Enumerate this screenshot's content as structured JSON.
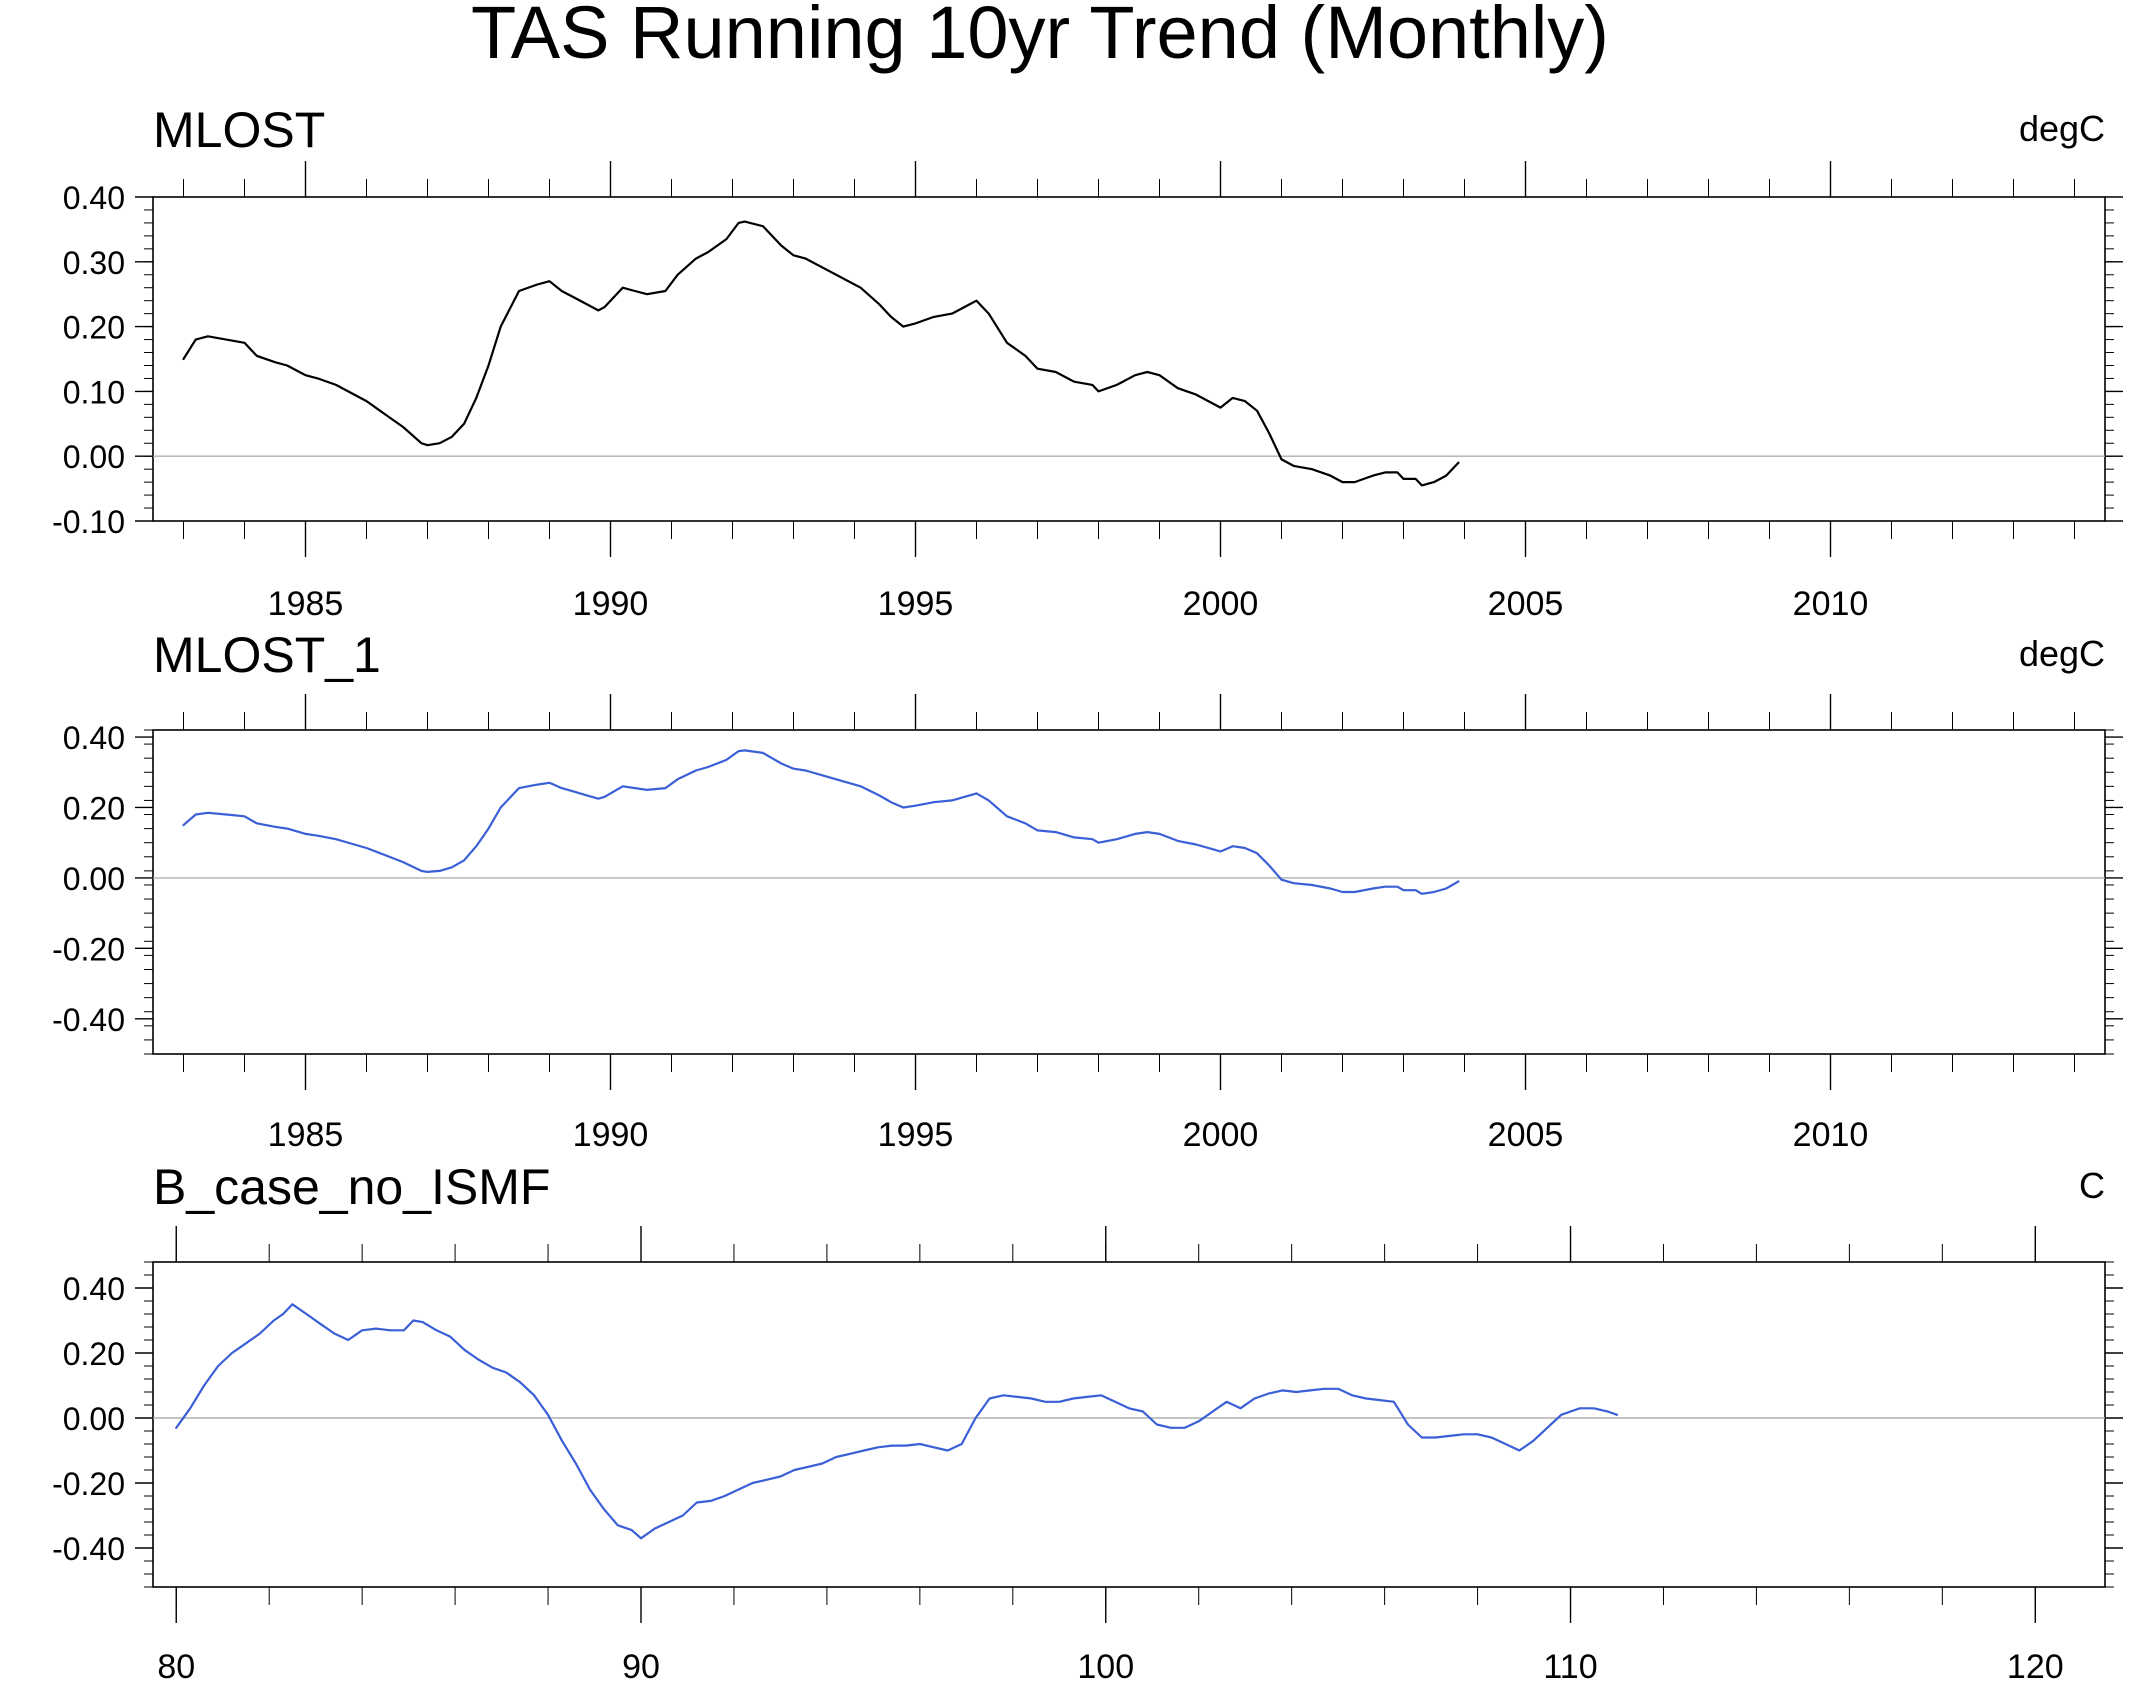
{
  "figure_title": "TAS Running 10yr Trend (Monthly)",
  "chart_data": [
    {
      "type": "line",
      "title": "MLOST",
      "units": "degC",
      "xlim": [
        1982.5,
        2014.5
      ],
      "ylim": [
        -0.1,
        0.4
      ],
      "x_ticks": [
        1985,
        1990,
        1995,
        2000,
        2005,
        2010
      ],
      "x_tick_labels": [
        "1985",
        "1990",
        "1995",
        "2000",
        "2005",
        "2010"
      ],
      "y_ticks": [
        -0.1,
        0.0,
        0.1,
        0.2,
        0.3,
        0.4
      ],
      "y_tick_labels": [
        "-0.10",
        "0.00",
        "0.10",
        "0.20",
        "0.30",
        "0.40"
      ],
      "reference_line": 0,
      "grid": false,
      "line_color": "#000000",
      "series": [
        {
          "x": [
            1983.0,
            1983.2,
            1983.4,
            1983.7,
            1984.0,
            1984.2,
            1984.5,
            1984.7,
            1984.9,
            1985.0,
            1985.2,
            1985.5,
            1985.8,
            1986.0,
            1986.3,
            1986.6,
            1986.9,
            1987.0,
            1987.2,
            1987.4,
            1987.6,
            1987.8,
            1988.0,
            1988.2,
            1988.5,
            1988.8,
            1989.0,
            1989.2,
            1989.4,
            1989.6,
            1989.8,
            1989.9,
            1990.0,
            1990.2,
            1990.4,
            1990.6,
            1990.9,
            1991.1,
            1991.4,
            1991.6,
            1991.9,
            1992.1,
            1992.2,
            1992.5,
            1992.8,
            1993.0,
            1993.2,
            1993.5,
            1993.8,
            1994.1,
            1994.4,
            1994.6,
            1994.8,
            1995.0,
            1995.3,
            1995.6,
            1995.9,
            1996.0,
            1996.2,
            1996.5,
            1996.8,
            1997.0,
            1997.3,
            1997.6,
            1997.9,
            1998.0,
            1998.3,
            1998.6,
            1998.8,
            1999.0,
            1999.3,
            1999.6,
            1999.9,
            2000.0,
            2000.2,
            2000.4,
            2000.6,
            2000.8,
            2001.0,
            2001.2,
            2001.5,
            2001.8,
            2002.0,
            2002.2,
            2002.5,
            2002.7,
            2002.9,
            2003.0,
            2003.2,
            2003.3,
            2003.5,
            2003.7,
            2003.9
          ],
          "y": [
            0.15,
            0.18,
            0.185,
            0.18,
            0.175,
            0.155,
            0.145,
            0.14,
            0.13,
            0.125,
            0.12,
            0.11,
            0.095,
            0.085,
            0.065,
            0.045,
            0.02,
            0.017,
            0.02,
            0.03,
            0.05,
            0.09,
            0.14,
            0.2,
            0.255,
            0.265,
            0.27,
            0.255,
            0.245,
            0.235,
            0.225,
            0.23,
            0.24,
            0.26,
            0.255,
            0.25,
            0.255,
            0.28,
            0.305,
            0.315,
            0.335,
            0.36,
            0.362,
            0.355,
            0.325,
            0.31,
            0.305,
            0.29,
            0.275,
            0.26,
            0.235,
            0.215,
            0.2,
            0.205,
            0.215,
            0.22,
            0.235,
            0.24,
            0.22,
            0.175,
            0.155,
            0.135,
            0.13,
            0.115,
            0.11,
            0.1,
            0.11,
            0.125,
            0.13,
            0.125,
            0.105,
            0.095,
            0.08,
            0.075,
            0.09,
            0.085,
            0.07,
            0.035,
            -0.005,
            -0.015,
            -0.02,
            -0.03,
            -0.04,
            -0.04,
            -0.03,
            -0.025,
            -0.025,
            -0.035,
            -0.035,
            -0.045,
            -0.04,
            -0.03,
            -0.01
          ]
        }
      ]
    },
    {
      "type": "line",
      "title": "MLOST_1",
      "units": "degC",
      "xlim": [
        1982.5,
        2014.5
      ],
      "ylim": [
        -0.5,
        0.42
      ],
      "x_ticks": [
        1985,
        1990,
        1995,
        2000,
        2005,
        2010
      ],
      "x_tick_labels": [
        "1985",
        "1990",
        "1995",
        "2000",
        "2005",
        "2010"
      ],
      "y_ticks": [
        -0.4,
        -0.2,
        0.0,
        0.2,
        0.4
      ],
      "y_tick_labels": [
        "-0.40",
        "-0.20",
        "0.00",
        "0.20",
        "0.40"
      ],
      "reference_line": 0,
      "grid": false,
      "line_color": "#3a5fd6",
      "series": [
        {
          "x": [
            1983.0,
            1983.2,
            1983.4,
            1983.7,
            1984.0,
            1984.2,
            1984.5,
            1984.7,
            1984.9,
            1985.0,
            1985.2,
            1985.5,
            1985.8,
            1986.0,
            1986.3,
            1986.6,
            1986.9,
            1987.0,
            1987.2,
            1987.4,
            1987.6,
            1987.8,
            1988.0,
            1988.2,
            1988.5,
            1988.8,
            1989.0,
            1989.2,
            1989.4,
            1989.6,
            1989.8,
            1989.9,
            1990.0,
            1990.2,
            1990.4,
            1990.6,
            1990.9,
            1991.1,
            1991.4,
            1991.6,
            1991.9,
            1992.1,
            1992.2,
            1992.5,
            1992.8,
            1993.0,
            1993.2,
            1993.5,
            1993.8,
            1994.1,
            1994.4,
            1994.6,
            1994.8,
            1995.0,
            1995.3,
            1995.6,
            1995.9,
            1996.0,
            1996.2,
            1996.5,
            1996.8,
            1997.0,
            1997.3,
            1997.6,
            1997.9,
            1998.0,
            1998.3,
            1998.6,
            1998.8,
            1999.0,
            1999.3,
            1999.6,
            1999.9,
            2000.0,
            2000.2,
            2000.4,
            2000.6,
            2000.8,
            2001.0,
            2001.2,
            2001.5,
            2001.8,
            2002.0,
            2002.2,
            2002.5,
            2002.7,
            2002.9,
            2003.0,
            2003.2,
            2003.3,
            2003.5,
            2003.7,
            2003.9
          ],
          "y": [
            0.15,
            0.18,
            0.185,
            0.18,
            0.175,
            0.155,
            0.145,
            0.14,
            0.13,
            0.125,
            0.12,
            0.11,
            0.095,
            0.085,
            0.065,
            0.045,
            0.02,
            0.017,
            0.02,
            0.03,
            0.05,
            0.09,
            0.14,
            0.2,
            0.255,
            0.265,
            0.27,
            0.255,
            0.245,
            0.235,
            0.225,
            0.23,
            0.24,
            0.26,
            0.255,
            0.25,
            0.255,
            0.28,
            0.305,
            0.315,
            0.335,
            0.36,
            0.362,
            0.355,
            0.325,
            0.31,
            0.305,
            0.29,
            0.275,
            0.26,
            0.235,
            0.215,
            0.2,
            0.205,
            0.215,
            0.22,
            0.235,
            0.24,
            0.22,
            0.175,
            0.155,
            0.135,
            0.13,
            0.115,
            0.11,
            0.1,
            0.11,
            0.125,
            0.13,
            0.125,
            0.105,
            0.095,
            0.08,
            0.075,
            0.09,
            0.085,
            0.07,
            0.035,
            -0.005,
            -0.015,
            -0.02,
            -0.03,
            -0.04,
            -0.04,
            -0.03,
            -0.025,
            -0.025,
            -0.035,
            -0.035,
            -0.045,
            -0.04,
            -0.03,
            -0.01
          ]
        }
      ]
    },
    {
      "type": "line",
      "title": "B_case_no_ISMF",
      "units": "C",
      "xlim": [
        79.5,
        121.5
      ],
      "ylim": [
        -0.52,
        0.48
      ],
      "x_ticks": [
        80,
        90,
        100,
        110,
        120
      ],
      "x_tick_labels": [
        "80",
        "90",
        "100",
        "110",
        "120"
      ],
      "y_ticks": [
        -0.4,
        -0.2,
        0.0,
        0.2,
        0.4
      ],
      "y_tick_labels": [
        "-0.40",
        "-0.20",
        "0.00",
        "0.20",
        "0.40"
      ],
      "reference_line": 0,
      "grid": false,
      "line_color": "#3a5fd6",
      "series": [
        {
          "x": [
            80.0,
            80.3,
            80.6,
            80.9,
            81.2,
            81.5,
            81.8,
            82.1,
            82.3,
            82.5,
            82.8,
            83.1,
            83.4,
            83.7,
            84.0,
            84.3,
            84.6,
            84.9,
            85.1,
            85.3,
            85.6,
            85.9,
            86.2,
            86.5,
            86.8,
            87.1,
            87.4,
            87.7,
            88.0,
            88.3,
            88.6,
            88.9,
            89.2,
            89.5,
            89.8,
            90.0,
            90.3,
            90.6,
            90.9,
            91.2,
            91.5,
            91.8,
            92.1,
            92.4,
            92.7,
            93.0,
            93.3,
            93.6,
            93.9,
            94.2,
            94.5,
            94.8,
            95.1,
            95.4,
            95.7,
            96.0,
            96.3,
            96.6,
            96.9,
            97.2,
            97.5,
            97.8,
            98.1,
            98.4,
            98.7,
            99.0,
            99.3,
            99.6,
            99.9,
            100.2,
            100.5,
            100.8,
            101.1,
            101.4,
            101.7,
            102.0,
            102.3,
            102.6,
            102.9,
            103.2,
            103.5,
            103.8,
            104.1,
            104.4,
            104.7,
            105.0,
            105.3,
            105.6,
            105.9,
            106.2,
            106.5,
            106.8,
            107.1,
            107.4,
            107.7,
            108.0,
            108.3,
            108.6,
            108.9,
            109.2,
            109.5,
            109.8,
            110.0,
            110.2,
            110.5,
            110.8,
            111.0
          ],
          "y": [
            -0.03,
            0.03,
            0.1,
            0.16,
            0.2,
            0.23,
            0.26,
            0.3,
            0.32,
            0.35,
            0.32,
            0.29,
            0.26,
            0.24,
            0.27,
            0.275,
            0.27,
            0.27,
            0.3,
            0.295,
            0.27,
            0.25,
            0.21,
            0.18,
            0.155,
            0.14,
            0.11,
            0.07,
            0.01,
            -0.07,
            -0.14,
            -0.22,
            -0.28,
            -0.33,
            -0.345,
            -0.37,
            -0.34,
            -0.32,
            -0.3,
            -0.26,
            -0.255,
            -0.24,
            -0.22,
            -0.2,
            -0.19,
            -0.18,
            -0.16,
            -0.15,
            -0.14,
            -0.12,
            -0.11,
            -0.1,
            -0.09,
            -0.085,
            -0.085,
            -0.08,
            -0.09,
            -0.1,
            -0.08,
            0.0,
            0.06,
            0.07,
            0.065,
            0.06,
            0.05,
            0.05,
            0.06,
            0.065,
            0.07,
            0.05,
            0.03,
            0.02,
            -0.02,
            -0.03,
            -0.03,
            -0.01,
            0.02,
            0.05,
            0.03,
            0.06,
            0.075,
            0.085,
            0.08,
            0.085,
            0.09,
            0.09,
            0.07,
            0.06,
            0.055,
            0.05,
            -0.02,
            -0.06,
            -0.06,
            -0.055,
            -0.05,
            -0.05,
            -0.06,
            -0.08,
            -0.1,
            -0.07,
            -0.03,
            0.01,
            0.02,
            0.03,
            0.03,
            0.02,
            0.01
          ]
        }
      ]
    }
  ]
}
